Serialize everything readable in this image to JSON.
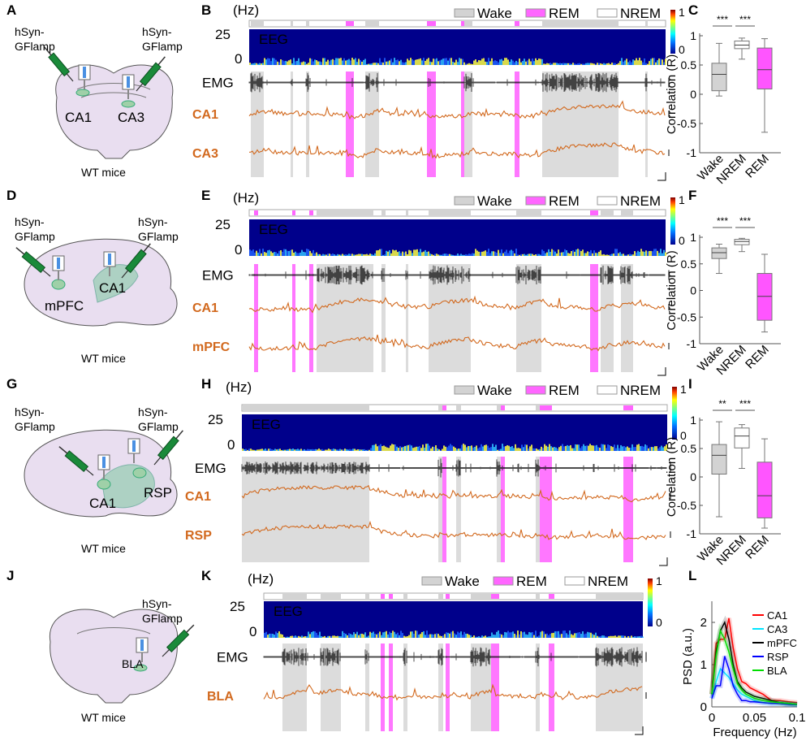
{
  "panel_labels": [
    "A",
    "B",
    "C",
    "D",
    "E",
    "F",
    "G",
    "H",
    "I",
    "J",
    "K",
    "L"
  ],
  "common": {
    "virus": "hSyn-GFlamp",
    "virus_line1": "hSyn-",
    "virus_line2": "GFlamp",
    "mice": "WT mice",
    "hz_label": "(Hz)",
    "freq_top": "25",
    "freq_bottom": "0",
    "eeg": "EEG",
    "emg": "EMG",
    "colorbar_max": "1",
    "colorbar_min": "0",
    "legend": {
      "wake": "Wake",
      "rem": "REM",
      "nrem": "NREM"
    }
  },
  "colors": {
    "wake": "#d3d3d3",
    "rem": "#ff66ff",
    "nrem": "#ffffff",
    "trace": "#d2691e",
    "spectrogram": "#00008b"
  },
  "rows": [
    {
      "regions": [
        "CA1",
        "CA3"
      ],
      "traces": [
        "CA1",
        "CA3"
      ]
    },
    {
      "regions": [
        "mPFC",
        "CA1"
      ],
      "traces": [
        "CA1",
        "mPFC"
      ]
    },
    {
      "regions": [
        "CA1",
        "RSP"
      ],
      "traces": [
        "CA1",
        "RSP"
      ]
    },
    {
      "regions": [
        "BLA"
      ],
      "traces": [
        "BLA"
      ]
    }
  ],
  "chart_data": [
    {
      "type": "box",
      "panel": "C",
      "ylabel": "Correlation (R)",
      "ylim": [
        -1,
        1
      ],
      "yticks": [
        "1",
        "0.5",
        "0",
        "-0.5",
        "-1"
      ],
      "categories": [
        "Wake",
        "NREM",
        "REM"
      ],
      "significance": [
        "***",
        "***"
      ],
      "boxes": [
        {
          "name": "Wake",
          "min": -0.03,
          "q1": 0.06,
          "median": 0.34,
          "q3": 0.53,
          "max": 0.87
        },
        {
          "name": "NREM",
          "min": 0.6,
          "q1": 0.78,
          "median": 0.84,
          "q3": 0.91,
          "max": 0.96
        },
        {
          "name": "REM",
          "min": -0.65,
          "q1": 0.09,
          "median": 0.42,
          "q3": 0.79,
          "max": 0.95
        }
      ]
    },
    {
      "type": "box",
      "panel": "F",
      "ylabel": "Correlation (R)",
      "ylim": [
        -1,
        1
      ],
      "yticks": [
        "1",
        "0.5",
        "0",
        "-0.5",
        "-1"
      ],
      "categories": [
        "Wake",
        "NREM",
        "REM"
      ],
      "significance": [
        "***",
        "***"
      ],
      "boxes": [
        {
          "name": "Wake",
          "min": 0.32,
          "q1": 0.6,
          "median": 0.71,
          "q3": 0.8,
          "max": 0.87
        },
        {
          "name": "NREM",
          "min": 0.73,
          "q1": 0.86,
          "median": 0.92,
          "q3": 0.96,
          "max": 0.98
        },
        {
          "name": "REM",
          "min": -0.78,
          "q1": -0.56,
          "median": -0.11,
          "q3": 0.32,
          "max": 0.68
        }
      ]
    },
    {
      "type": "box",
      "panel": "I",
      "ylabel": "Correlation (R)",
      "ylim": [
        -1,
        1
      ],
      "yticks": [
        "1",
        "0.5",
        "0",
        "-0.5",
        "-1"
      ],
      "categories": [
        "Wake",
        "NREM",
        "REM"
      ],
      "significance": [
        "**",
        "***"
      ],
      "boxes": [
        {
          "name": "Wake",
          "min": -0.7,
          "q1": 0.05,
          "median": 0.38,
          "q3": 0.57,
          "max": 0.97
        },
        {
          "name": "NREM",
          "min": 0.15,
          "q1": 0.51,
          "median": 0.72,
          "q3": 0.86,
          "max": 0.92
        },
        {
          "name": "REM",
          "min": -0.9,
          "q1": -0.72,
          "median": -0.33,
          "q3": 0.26,
          "max": 0.67
        }
      ]
    },
    {
      "type": "line",
      "panel": "L",
      "xlabel": "Frequency (Hz)",
      "ylabel": "PSD (a.u.)",
      "xlim": [
        0,
        0.1
      ],
      "ylim": [
        0,
        2.5
      ],
      "xticks": [
        "0",
        "0.05",
        "0.1"
      ],
      "yticks": [
        "0",
        "1",
        "2"
      ],
      "x": [
        0,
        0.005,
        0.01,
        0.015,
        0.02,
        0.025,
        0.03,
        0.035,
        0.04,
        0.045,
        0.05,
        0.06,
        0.07,
        0.08,
        0.09,
        0.1
      ],
      "legend_position": "top-right",
      "series": [
        {
          "name": "CA1",
          "color": "#ff0000",
          "values": [
            0.3,
            1.5,
            1.6,
            1.6,
            2.1,
            1.4,
            0.9,
            0.6,
            0.55,
            0.45,
            0.4,
            0.3,
            0.15,
            0.15,
            0.12,
            0.1
          ]
        },
        {
          "name": "CA3",
          "color": "#00e5ff",
          "values": [
            0.2,
            0.6,
            0.9,
            0.8,
            0.7,
            0.55,
            0.4,
            0.3,
            0.25,
            0.2,
            0.15,
            0.1,
            0.08,
            0.08,
            0.06,
            0.05
          ]
        },
        {
          "name": "mPFC",
          "color": "#000000",
          "values": [
            0.3,
            1.3,
            1.8,
            2.0,
            1.6,
            1.0,
            0.6,
            0.45,
            0.35,
            0.3,
            0.25,
            0.2,
            0.15,
            0.1,
            0.08,
            0.06
          ]
        },
        {
          "name": "RSP",
          "color": "#0000ff",
          "values": [
            0.2,
            0.5,
            0.5,
            1.2,
            0.9,
            0.5,
            0.3,
            0.15,
            0.15,
            0.12,
            0.12,
            0.1,
            0.08,
            0.08,
            0.06,
            0.05
          ]
        },
        {
          "name": "BLA",
          "color": "#00dd00",
          "values": [
            0.3,
            1.2,
            1.8,
            1.6,
            1.3,
            0.9,
            0.55,
            0.4,
            0.3,
            0.25,
            0.2,
            0.15,
            0.12,
            0.1,
            0.08,
            0.06
          ]
        }
      ]
    }
  ]
}
